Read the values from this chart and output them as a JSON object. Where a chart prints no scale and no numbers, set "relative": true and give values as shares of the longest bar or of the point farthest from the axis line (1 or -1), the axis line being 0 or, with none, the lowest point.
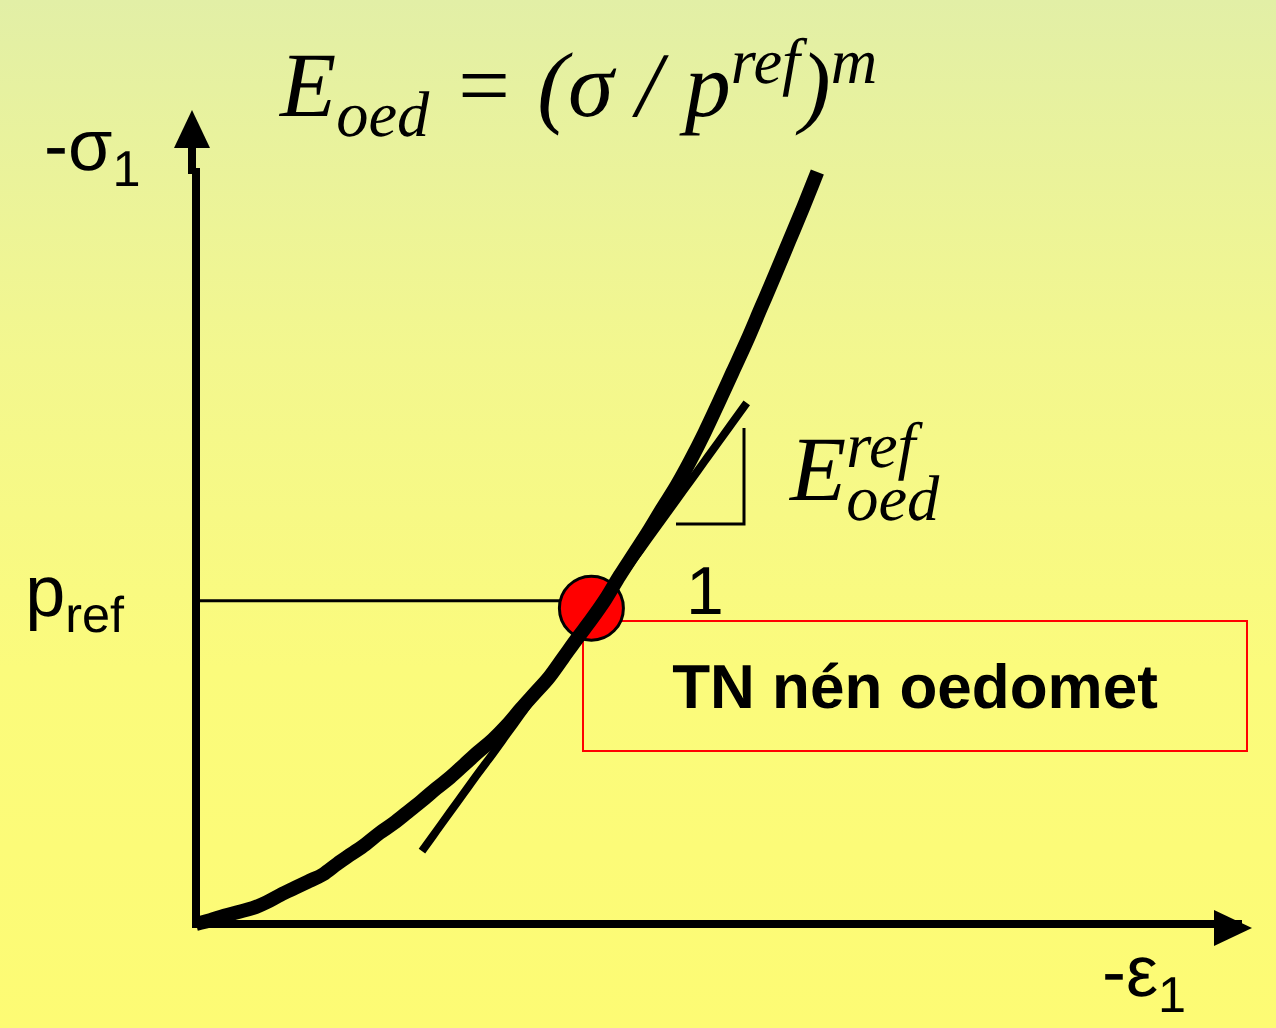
{
  "chart_data": {
    "type": "line",
    "title": "E$_{oed}$ = (σ / p$^{ref}$)$^{m}$",
    "xlabel": "-ε$_{1}$",
    "ylabel": "-σ$_{1}$",
    "relative": true,
    "categories": [
      null,
      null,
      null,
      null,
      null,
      null,
      null,
      null,
      null,
      null,
      null,
      null,
      null,
      null,
      null,
      null,
      null,
      null,
      null,
      null,
      null,
      null,
      null,
      null,
      null,
      null,
      null,
      null,
      null,
      null,
      null,
      null,
      null,
      null,
      null,
      null,
      null,
      null,
      null,
      null,
      null,
      null,
      null,
      null,
      null,
      null,
      null,
      null,
      null,
      null,
      null,
      null,
      null,
      null,
      null,
      null,
      null,
      null,
      null,
      null,
      null,
      null,
      null,
      null,
      null,
      null,
      null,
      null,
      null,
      null,
      null,
      null,
      null,
      null,
      null
    ],
    "series": [
      {
        "type": "line",
        "color": "#000000",
        "values": [
          0,
          0.005,
          0.011,
          0.016,
          0.021,
          0.029,
          0.039,
          0.048,
          0.057,
          0.066,
          0.08,
          0.093,
          0.106,
          0.121,
          0.134,
          0.149,
          0.164,
          0.18,
          0.195,
          0.212,
          0.229,
          0.245,
          0.264,
          0.286,
          0.307,
          0.328,
          0.354,
          0.38,
          0.405,
          0.432,
          0.463,
          0.492,
          0.521,
          0.552,
          0.582,
          0.616,
          0.653,
          0.693,
          0.734,
          0.775,
          0.819,
          0.863,
          0.908,
          0.953,
          1,
          null,
          null,
          null,
          null,
          null,
          null,
          null,
          null,
          null,
          null,
          null,
          null,
          null,
          null,
          null,
          null,
          null,
          null,
          null,
          null,
          null,
          null,
          null,
          null,
          null,
          null,
          null,
          null,
          null,
          null
        ]
      },
      {
        "type": "line",
        "color": "#000000",
        "values": [
          null,
          null,
          null,
          null,
          null,
          null,
          null,
          null,
          null,
          null,
          null,
          null,
          null,
          null,
          null,
          null,
          0.097,
          0.123,
          0.149,
          0.175,
          0.201,
          0.226,
          0.252,
          0.278,
          0.304,
          0.33,
          0.356,
          0.382,
          0.408,
          0.434,
          0.459,
          0.485,
          0.511,
          0.537,
          0.563,
          0.589,
          0.615,
          0.641,
          0.667,
          0.693,
          null,
          null,
          null,
          null,
          null,
          null,
          null,
          null,
          null,
          null,
          null,
          null,
          null,
          null,
          null,
          null,
          null,
          null,
          null,
          null,
          null,
          null,
          null,
          null,
          null,
          null,
          null,
          null,
          null,
          null,
          null,
          null,
          null,
          null,
          null
        ]
      },
      {
        "type": "line",
        "color": "#ff0000",
        "marker": "circle",
        "values": [
          null,
          null,
          null,
          null,
          null,
          null,
          null,
          null,
          null,
          null,
          null,
          null,
          null,
          null,
          null,
          null,
          null,
          null,
          null,
          null,
          null,
          null,
          null,
          null,
          null,
          null,
          null,
          null,
          0.42,
          null,
          null,
          null,
          null,
          null,
          null,
          null,
          null,
          null,
          null,
          null,
          null,
          null,
          null,
          null,
          null,
          null,
          null,
          null,
          null,
          null,
          null,
          null,
          null,
          null,
          null,
          null,
          null,
          null,
          null,
          null,
          null,
          null,
          null,
          null,
          null,
          null,
          null,
          null,
          null,
          null,
          null,
          null,
          null,
          null,
          null
        ]
      }
    ],
    "ref_lines": [
      {
        "axis": "y",
        "value": 0.43,
        "label": "p$_{ref}$",
        "color": "#000000"
      }
    ],
    "annotations": [
      "E$^{ref}$$_{oed}$",
      "1",
      "TN nén oedomet"
    ]
  }
}
